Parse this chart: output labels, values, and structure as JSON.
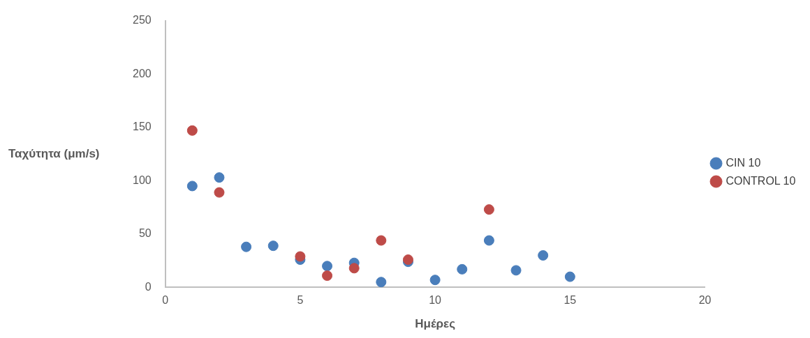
{
  "chart_data": {
    "type": "scatter",
    "xlabel": "Ημέρες",
    "ylabel": "Ταχύτητα (μm/s)",
    "xlim": [
      0,
      20
    ],
    "xticks": [
      0,
      5,
      10,
      15,
      20
    ],
    "ylim": [
      0,
      250
    ],
    "yticks": [
      0,
      50,
      100,
      150,
      200,
      250
    ],
    "grid": false,
    "legend": "right",
    "marker": "circle",
    "series": [
      {
        "name": "CIN 10",
        "color": "#4a7ebb",
        "x": [
          1,
          2,
          3,
          4,
          5,
          6,
          7,
          8,
          9,
          10,
          11,
          12,
          13,
          14,
          15
        ],
        "values": [
          95,
          103,
          38,
          39,
          26,
          20,
          23,
          5,
          24,
          7,
          17,
          44,
          16,
          30,
          10
        ]
      },
      {
        "name": "CONTROL 10",
        "color": "#be4b48",
        "x": [
          1,
          2,
          5,
          6,
          7,
          8,
          9,
          12
        ],
        "values": [
          147,
          89,
          29,
          11,
          18,
          44,
          26,
          73
        ]
      }
    ]
  }
}
